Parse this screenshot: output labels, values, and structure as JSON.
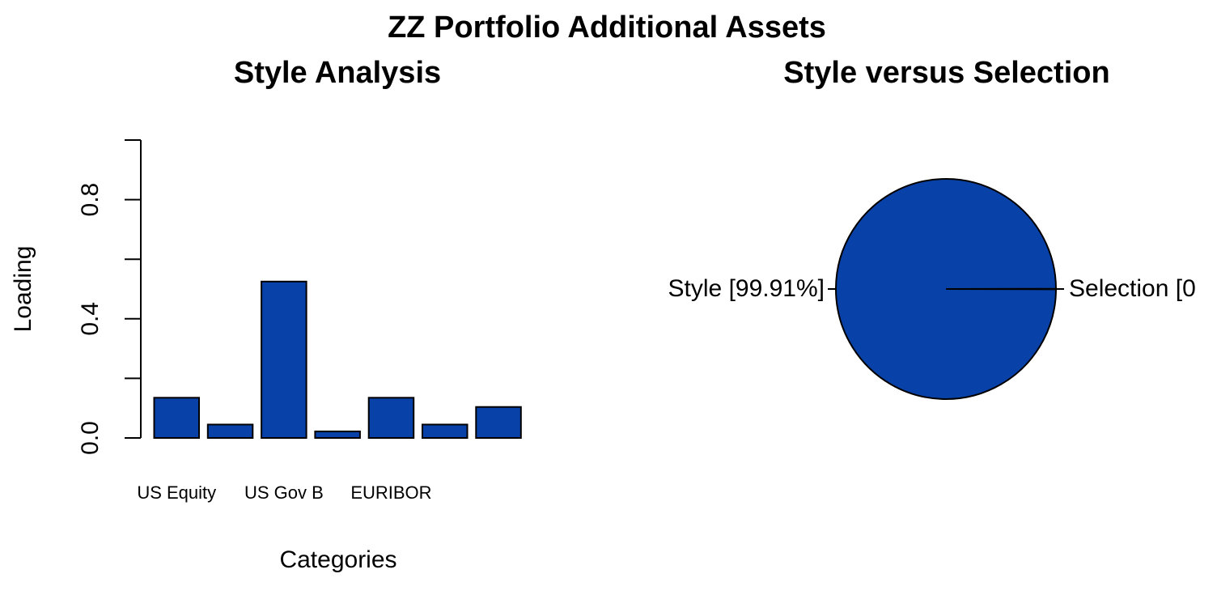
{
  "title": "ZZ Portfolio Additional Assets",
  "colors": {
    "bar_fill": "#0842A8",
    "stroke": "#000000",
    "background": "#FFFFFF"
  },
  "chart_data": [
    {
      "type": "bar",
      "title": "Style Analysis",
      "xlabel": "Categories",
      "ylabel": "Loading",
      "ylim": [
        0,
        1.0
      ],
      "yticks": [
        0.0,
        0.2,
        0.4,
        0.6,
        0.8,
        1.0
      ],
      "ytick_labels": [
        {
          "value": 0.0,
          "label": "0.0"
        },
        {
          "value": 0.4,
          "label": "0.4"
        },
        {
          "value": 0.8,
          "label": "0.8"
        }
      ],
      "categories": [
        "US Equity",
        "",
        "US Gov B",
        "",
        "EURIBOR",
        "",
        ""
      ],
      "values": [
        0.135,
        0.045,
        0.525,
        0.022,
        0.135,
        0.045,
        0.104
      ],
      "grid": false
    },
    {
      "type": "pie",
      "title": "Style versus Selection",
      "slices": [
        {
          "label": "Style [99.91%]",
          "value": 99.91
        },
        {
          "label": "Selection [0",
          "value": 0.09
        }
      ]
    }
  ]
}
